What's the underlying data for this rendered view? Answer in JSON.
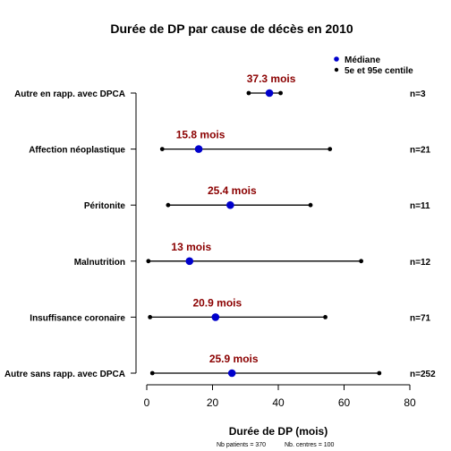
{
  "colors": {
    "median": "#0000cc",
    "label": "#8b0000",
    "ink": "#000000"
  },
  "legend": {
    "median_label": "Médiane",
    "range_label": "5e et 95e centile"
  },
  "footer": {
    "patients": "Nb patients =  370",
    "centres": "Nb. centres =  100"
  },
  "chart_data": {
    "type": "dot-range",
    "title": "Durée de DP par cause de décès en 2010",
    "xlabel": "Durée de DP (mois)",
    "xlim": [
      0,
      80
    ],
    "xticks": [
      0,
      20,
      40,
      60,
      80
    ],
    "xtick_labels": [
      "0",
      "20",
      "40",
      "60",
      "80"
    ],
    "categories": [
      "Autre en rapp. avec DPCA",
      "Affection néoplastique",
      "Péritonite",
      "Malnutrition",
      "Insuffisance coronaire",
      "Autre sans rapp. avec DPCA"
    ],
    "median": [
      37.3,
      15.8,
      25.4,
      13,
      20.9,
      25.9
    ],
    "median_labels": [
      "37.3 mois",
      "15.8 mois",
      "25.4 mois",
      "13 mois",
      "20.9 mois",
      "25.9 mois"
    ],
    "p5": [
      31.0,
      4.7,
      6.5,
      0.5,
      1.0,
      1.7
    ],
    "p95": [
      40.7,
      55.7,
      49.8,
      65.2,
      54.3,
      70.7
    ],
    "n_labels": [
      "n=3",
      "n=21",
      "n=11",
      "n=12",
      "n=71",
      "n=252"
    ]
  }
}
